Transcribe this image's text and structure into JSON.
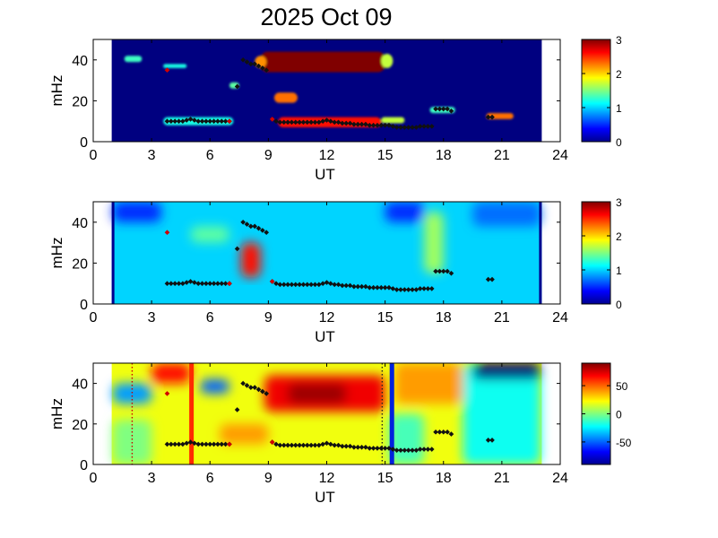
{
  "title": "2025 Oct 09",
  "chart_data": [
    {
      "type": "heatmap",
      "panel": "top",
      "xlabel": "UT",
      "ylabel": "mHz",
      "xlim": [
        0,
        24
      ],
      "ylim": [
        0,
        50
      ],
      "xticks": [
        "0",
        "3",
        "6",
        "9",
        "12",
        "15",
        "18",
        "21",
        "24"
      ],
      "yticks": [
        "0",
        "20",
        "40"
      ],
      "colorbar": {
        "min": 0,
        "max": 3,
        "ticks": [
          "0",
          "1",
          "2",
          "3"
        ]
      },
      "data_range_ut": [
        0.95,
        23.05
      ],
      "background_level": 0,
      "regions": [
        {
          "x": [
            8.6,
            15.0
          ],
          "y": [
            34,
            44
          ],
          "level": 3.0
        },
        {
          "x": [
            8.3,
            8.9
          ],
          "y": [
            36,
            42
          ],
          "level": 2.2
        },
        {
          "x": [
            14.8,
            15.4
          ],
          "y": [
            36,
            43
          ],
          "level": 1.7
        },
        {
          "x": [
            9.3,
            10.5
          ],
          "y": [
            19,
            24
          ],
          "level": 2.3
        },
        {
          "x": [
            9.5,
            14.8
          ],
          "y": [
            7,
            12
          ],
          "level": 2.6
        },
        {
          "x": [
            14.8,
            16.0
          ],
          "y": [
            9,
            12
          ],
          "level": 1.7
        },
        {
          "x": [
            3.6,
            7.2
          ],
          "y": [
            8,
            12
          ],
          "level": 1.2
        },
        {
          "x": [
            20.2,
            21.6
          ],
          "y": [
            11,
            14
          ],
          "level": 2.3
        },
        {
          "x": [
            17.3,
            18.6
          ],
          "y": [
            14,
            17
          ],
          "level": 1.3
        },
        {
          "x": [
            1.6,
            2.5
          ],
          "y": [
            39,
            42
          ],
          "level": 1.3
        },
        {
          "x": [
            3.6,
            4.8
          ],
          "y": [
            36,
            38
          ],
          "level": 1.2
        },
        {
          "x": [
            7.0,
            7.5
          ],
          "y": [
            26,
            29
          ],
          "level": 1.4
        }
      ]
    },
    {
      "type": "heatmap",
      "panel": "middle",
      "xlabel": "UT",
      "ylabel": "mHz",
      "xlim": [
        0,
        24
      ],
      "ylim": [
        0,
        50
      ],
      "xticks": [
        "0",
        "3",
        "6",
        "9",
        "12",
        "15",
        "18",
        "21",
        "24"
      ],
      "yticks": [
        "0",
        "20",
        "40"
      ],
      "colorbar": {
        "min": 0,
        "max": 3,
        "ticks": [
          "0",
          "1",
          "2",
          "3"
        ]
      },
      "data_range_ut": [
        0.95,
        23.05
      ],
      "background_level": 1.0,
      "regions": [
        {
          "x": [
            7.6,
            8.6
          ],
          "y": [
            13,
            30
          ],
          "level": 2.6
        },
        {
          "x": [
            1.0,
            3.5
          ],
          "y": [
            40,
            50
          ],
          "level": 0.5
        },
        {
          "x": [
            15.0,
            17.0
          ],
          "y": [
            40,
            50
          ],
          "level": 0.5
        },
        {
          "x": [
            19.5,
            23.0
          ],
          "y": [
            38,
            50
          ],
          "level": 0.7
        },
        {
          "x": [
            17.0,
            18.0
          ],
          "y": [
            15,
            45
          ],
          "level": 1.6
        },
        {
          "x": [
            5.0,
            7.0
          ],
          "y": [
            30,
            38
          ],
          "level": 1.4
        }
      ]
    },
    {
      "type": "heatmap",
      "panel": "bottom",
      "xlabel": "UT",
      "ylabel": "mHz",
      "xlim": [
        0,
        24
      ],
      "ylim": [
        0,
        50
      ],
      "xticks": [
        "0",
        "3",
        "6",
        "9",
        "12",
        "15",
        "18",
        "21",
        "24"
      ],
      "yticks": [
        "0",
        "20",
        "40"
      ],
      "colorbar": {
        "min": -90,
        "max": 90,
        "ticks": [
          "50",
          "0",
          "-50"
        ],
        "tick_values": [
          50,
          0,
          -50
        ]
      },
      "data_range_ut": [
        0.95,
        23.05
      ],
      "background_level": 20,
      "regions": [
        {
          "x": [
            8.8,
            15.0
          ],
          "y": [
            26,
            44
          ],
          "level": 70
        },
        {
          "x": [
            10.0,
            13.0
          ],
          "y": [
            30,
            40
          ],
          "level": 85
        },
        {
          "x": [
            3.0,
            5.0
          ],
          "y": [
            40,
            50
          ],
          "level": 65
        },
        {
          "x": [
            1.0,
            3.0
          ],
          "y": [
            30,
            40
          ],
          "level": -40
        },
        {
          "x": [
            5.5,
            7.0
          ],
          "y": [
            35,
            42
          ],
          "level": -50
        },
        {
          "x": [
            19.0,
            23.0
          ],
          "y": [
            0,
            50
          ],
          "level": -20
        },
        {
          "x": [
            19.5,
            23.0
          ],
          "y": [
            42,
            50
          ],
          "level": -90
        },
        {
          "x": [
            15.5,
            19.0
          ],
          "y": [
            30,
            50
          ],
          "level": 40
        },
        {
          "x": [
            15.2,
            17.0
          ],
          "y": [
            0,
            25
          ],
          "level": -10
        },
        {
          "x": [
            6.5,
            9.0
          ],
          "y": [
            10,
            20
          ],
          "level": 40
        },
        {
          "x": [
            1.0,
            3.0
          ],
          "y": [
            0,
            22
          ],
          "level": 0
        }
      ],
      "vlines": [
        {
          "x": 2.0,
          "color": "#cc0000",
          "style": "dotted"
        },
        {
          "x": 5.05,
          "color": "#ff2a00",
          "style": "solid"
        },
        {
          "x": 14.85,
          "color": "#222222",
          "style": "dotted"
        },
        {
          "x": 15.35,
          "color": "#0022dd",
          "style": "solid"
        }
      ]
    }
  ],
  "marker_track": [
    [
      3.8,
      10
    ],
    [
      4.0,
      10
    ],
    [
      4.2,
      10
    ],
    [
      4.4,
      10
    ],
    [
      4.6,
      10
    ],
    [
      4.8,
      10.5
    ],
    [
      5.0,
      11
    ],
    [
      5.2,
      10.5
    ],
    [
      5.4,
      10
    ],
    [
      5.6,
      10
    ],
    [
      5.8,
      10
    ],
    [
      6.0,
      10
    ],
    [
      6.2,
      10
    ],
    [
      6.4,
      10
    ],
    [
      6.6,
      10
    ],
    [
      6.8,
      10
    ],
    [
      7.0,
      10
    ],
    [
      9.2,
      11
    ],
    [
      9.4,
      10
    ],
    [
      9.6,
      9.5
    ],
    [
      9.8,
      9.5
    ],
    [
      10.0,
      9.5
    ],
    [
      10.2,
      9.5
    ],
    [
      10.4,
      9.5
    ],
    [
      10.6,
      9.5
    ],
    [
      10.8,
      9.5
    ],
    [
      11.0,
      9.5
    ],
    [
      11.2,
      9.5
    ],
    [
      11.4,
      9.5
    ],
    [
      11.6,
      9.5
    ],
    [
      11.8,
      10
    ],
    [
      12.0,
      10.5
    ],
    [
      12.2,
      10
    ],
    [
      12.4,
      9.5
    ],
    [
      12.6,
      9.5
    ],
    [
      12.8,
      9
    ],
    [
      13.0,
      9
    ],
    [
      13.2,
      9
    ],
    [
      13.4,
      8.5
    ],
    [
      13.6,
      8.5
    ],
    [
      13.8,
      8.5
    ],
    [
      14.0,
      8.5
    ],
    [
      14.2,
      8
    ],
    [
      14.4,
      8
    ],
    [
      14.6,
      8
    ],
    [
      14.8,
      8
    ],
    [
      15.0,
      8
    ],
    [
      15.2,
      8
    ],
    [
      15.4,
      7.5
    ],
    [
      15.6,
      7
    ],
    [
      15.8,
      7
    ],
    [
      16.0,
      7
    ],
    [
      16.2,
      7
    ],
    [
      16.4,
      7
    ],
    [
      16.6,
      7
    ],
    [
      16.8,
      7.5
    ],
    [
      17.0,
      7.5
    ],
    [
      17.2,
      7.5
    ],
    [
      17.4,
      7.5
    ],
    [
      7.4,
      27
    ],
    [
      7.7,
      40
    ],
    [
      7.9,
      39
    ],
    [
      8.1,
      38
    ],
    [
      8.3,
      38
    ],
    [
      8.5,
      37
    ],
    [
      8.7,
      36
    ],
    [
      8.9,
      35
    ],
    [
      17.6,
      16
    ],
    [
      17.8,
      16
    ],
    [
      18.0,
      16
    ],
    [
      18.2,
      16
    ],
    [
      18.4,
      15
    ],
    [
      20.3,
      12
    ],
    [
      20.5,
      12
    ]
  ],
  "red_markers": [
    [
      3.8,
      35
    ],
    [
      7.0,
      10
    ],
    [
      9.2,
      11
    ]
  ]
}
